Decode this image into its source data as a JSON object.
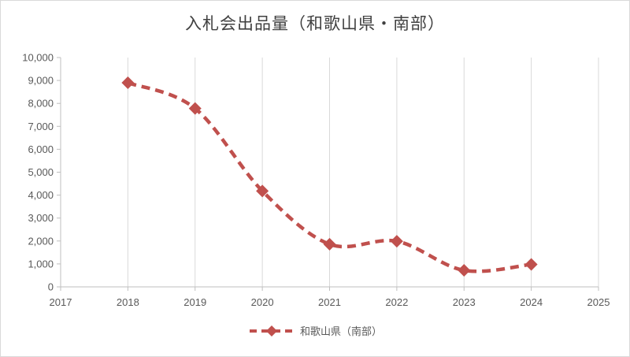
{
  "chart_data": {
    "type": "line",
    "title": "入札会出品量（和歌山県・南部）",
    "xlabel": "",
    "ylabel": "",
    "xlim": [
      2017,
      2025
    ],
    "ylim": [
      0,
      10000
    ],
    "x_ticks": [
      "2017",
      "2018",
      "2019",
      "2020",
      "2021",
      "2022",
      "2023",
      "2024",
      "2025"
    ],
    "y_ticks": [
      "0",
      "1,000",
      "2,000",
      "3,000",
      "4,000",
      "5,000",
      "6,000",
      "7,000",
      "8,000",
      "9,000",
      "10,000"
    ],
    "grid": "vertical",
    "legend_position": "bottom",
    "series": [
      {
        "name": "和歌山県（南部）",
        "color": "#c0504d",
        "line_style": "dashed-smooth",
        "marker": "diamond",
        "x": [
          2018,
          2019,
          2020,
          2021,
          2022,
          2023,
          2024
        ],
        "values": [
          8900,
          7780,
          4180,
          1860,
          1990,
          720,
          980
        ]
      }
    ]
  }
}
